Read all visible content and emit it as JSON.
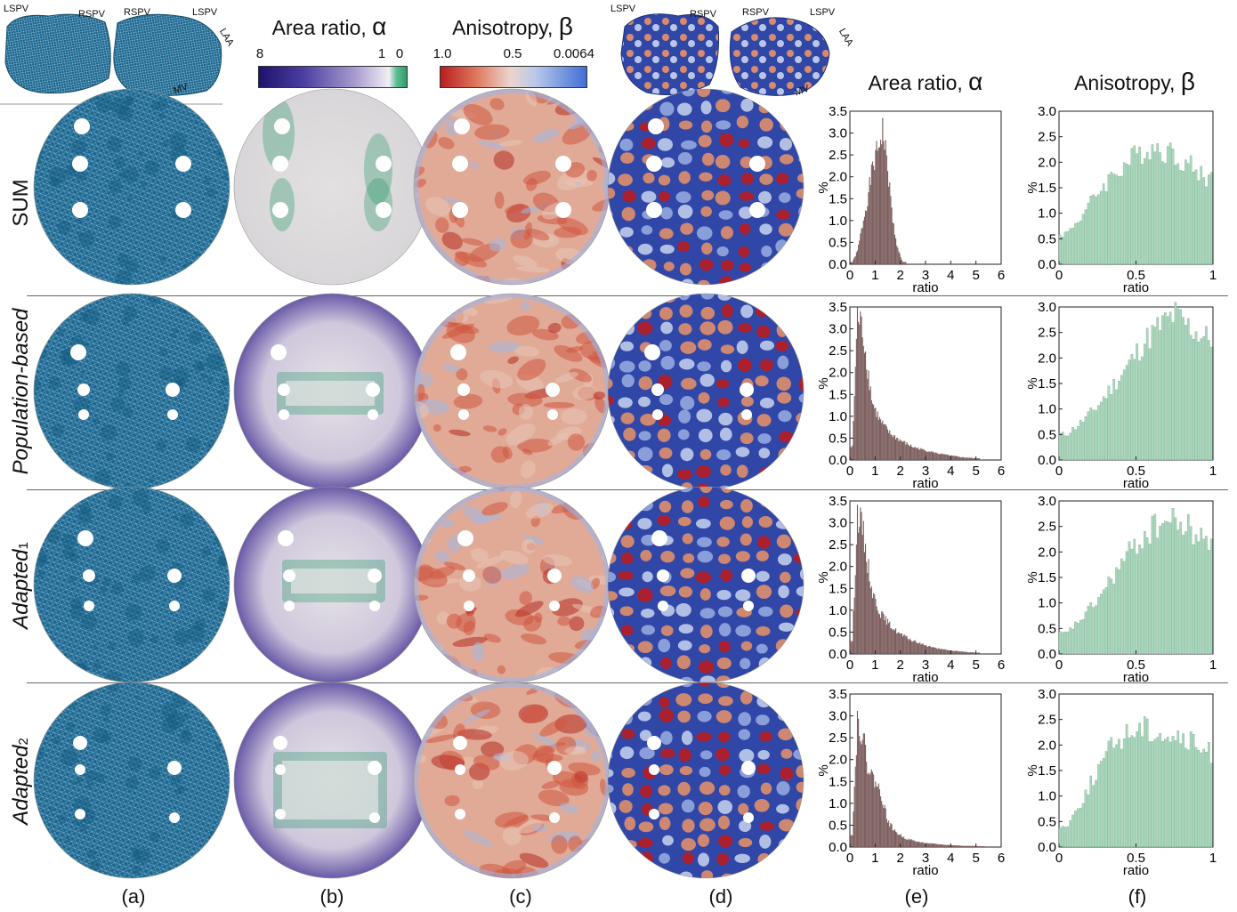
{
  "header": {
    "area_title": "Area ratio,",
    "area_symbol": "α",
    "aniso_title": "Anisotropy,",
    "aniso_symbol": "β",
    "area_ticks": [
      "8",
      "1",
      "0"
    ],
    "aniso_ticks": [
      "1.0",
      "0.5",
      "0.0064"
    ],
    "hist_area_title": "Area ratio,",
    "hist_aniso_title": "Anisotropy,"
  },
  "anatomy": {
    "left": [
      "LSPV",
      "RSPV"
    ],
    "right": [
      "RSPV",
      "LSPV",
      "LAA",
      "MV"
    ]
  },
  "rows": [
    {
      "label": "SUM",
      "italic": false,
      "sub": ""
    },
    {
      "label": "Population-based",
      "italic": true,
      "sub": ""
    },
    {
      "label": "Adapted",
      "italic": true,
      "sub": "1"
    },
    {
      "label": "Adapted",
      "italic": true,
      "sub": "2"
    }
  ],
  "column_letters": [
    "(a)",
    "(b)",
    "(c)",
    "(d)",
    "(e)",
    "(f)"
  ],
  "axis_label": "ratio",
  "y_label": "%",
  "colors": {
    "mesh": "#1b6690",
    "area_low": "#1e126e",
    "area_mid": "#e6e4e6",
    "area_high": "#2f9a6c",
    "aniso_hi": "#b81e1e",
    "aniso_mid": "#ecd5cf",
    "aniso_lo": "#3f6fd6",
    "checker_bg": "#3047a8",
    "hist_area": "#7d5f5f",
    "hist_aniso": "#a9d9bd"
  },
  "chart_data": [
    {
      "type": "bar",
      "panel": "SUM area ratio",
      "xlabel": "ratio",
      "ylabel": "%",
      "xlim": [
        0,
        6
      ],
      "ylim": [
        0,
        3.5
      ],
      "x": [
        0.1,
        0.3,
        0.5,
        0.7,
        0.9,
        1.1,
        1.3,
        1.5,
        1.7,
        1.9,
        2.1
      ],
      "values": [
        0.05,
        0.3,
        0.9,
        1.5,
        2.2,
        2.6,
        3.1,
        2.2,
        1.0,
        0.35,
        0.05
      ]
    },
    {
      "type": "bar",
      "panel": "SUM anisotropy",
      "xlabel": "ratio",
      "ylabel": "%",
      "xlim": [
        0,
        1
      ],
      "ylim": [
        0,
        3.0
      ],
      "x": [
        0.05,
        0.15,
        0.25,
        0.35,
        0.45,
        0.55,
        0.65,
        0.75,
        0.85,
        0.95
      ],
      "values": [
        0.6,
        0.95,
        1.4,
        1.75,
        2.0,
        2.25,
        2.3,
        2.15,
        1.95,
        1.7
      ]
    },
    {
      "type": "bar",
      "panel": "Population-based area ratio",
      "xlabel": "ratio",
      "ylabel": "%",
      "xlim": [
        0,
        6
      ],
      "ylim": [
        0,
        3.5
      ],
      "x": [
        0.1,
        0.3,
        0.5,
        0.7,
        0.9,
        1.2,
        1.6,
        2.0,
        2.5,
        3.0,
        3.5,
        4.0,
        4.5,
        5.0
      ],
      "values": [
        0.3,
        3.3,
        3.0,
        2.1,
        1.3,
        0.9,
        0.6,
        0.45,
        0.3,
        0.22,
        0.15,
        0.1,
        0.06,
        0.04
      ]
    },
    {
      "type": "bar",
      "panel": "Population-based anisotropy",
      "xlabel": "ratio",
      "ylabel": "%",
      "xlim": [
        0,
        1
      ],
      "ylim": [
        0,
        3.0
      ],
      "x": [
        0.05,
        0.15,
        0.25,
        0.35,
        0.45,
        0.55,
        0.65,
        0.75,
        0.85,
        0.95
      ],
      "values": [
        0.5,
        0.75,
        1.05,
        1.45,
        1.85,
        2.3,
        2.6,
        2.85,
        2.6,
        2.4
      ]
    },
    {
      "type": "bar",
      "panel": "Adapted1 area ratio",
      "xlabel": "ratio",
      "ylabel": "%",
      "xlim": [
        0,
        6
      ],
      "ylim": [
        0,
        3.5
      ],
      "x": [
        0.1,
        0.3,
        0.5,
        0.7,
        0.9,
        1.2,
        1.6,
        2.0,
        2.5,
        3.0,
        3.5,
        4.0,
        4.5,
        5.0
      ],
      "values": [
        0.3,
        3.2,
        2.9,
        2.1,
        1.4,
        0.95,
        0.65,
        0.45,
        0.3,
        0.2,
        0.12,
        0.08,
        0.05,
        0.03
      ]
    },
    {
      "type": "bar",
      "panel": "Adapted1 anisotropy",
      "xlabel": "ratio",
      "ylabel": "%",
      "xlim": [
        0,
        1
      ],
      "ylim": [
        0,
        3.0
      ],
      "x": [
        0.05,
        0.15,
        0.25,
        0.35,
        0.45,
        0.55,
        0.65,
        0.75,
        0.85,
        0.95
      ],
      "values": [
        0.4,
        0.7,
        1.05,
        1.5,
        1.95,
        2.3,
        2.55,
        2.6,
        2.45,
        2.2
      ]
    },
    {
      "type": "bar",
      "panel": "Adapted2 area ratio",
      "xlabel": "ratio",
      "ylabel": "%",
      "xlim": [
        0,
        6
      ],
      "ylim": [
        0,
        3.5
      ],
      "x": [
        0.1,
        0.3,
        0.5,
        0.7,
        0.9,
        1.1,
        1.3,
        1.5,
        1.8,
        2.2,
        2.7,
        3.2,
        3.8,
        4.5,
        5.2
      ],
      "values": [
        0.3,
        2.9,
        2.6,
        1.9,
        1.6,
        1.4,
        1.1,
        0.6,
        0.35,
        0.2,
        0.12,
        0.08,
        0.05,
        0.03,
        0.02
      ]
    },
    {
      "type": "bar",
      "panel": "Adapted2 anisotropy",
      "xlabel": "ratio",
      "ylabel": "%",
      "xlim": [
        0,
        1
      ],
      "ylim": [
        0,
        3.0
      ],
      "x": [
        0.05,
        0.15,
        0.25,
        0.35,
        0.45,
        0.55,
        0.65,
        0.75,
        0.85,
        0.95
      ],
      "values": [
        0.4,
        0.9,
        1.5,
        2.0,
        2.25,
        2.35,
        2.25,
        2.15,
        2.05,
        1.85
      ]
    }
  ]
}
